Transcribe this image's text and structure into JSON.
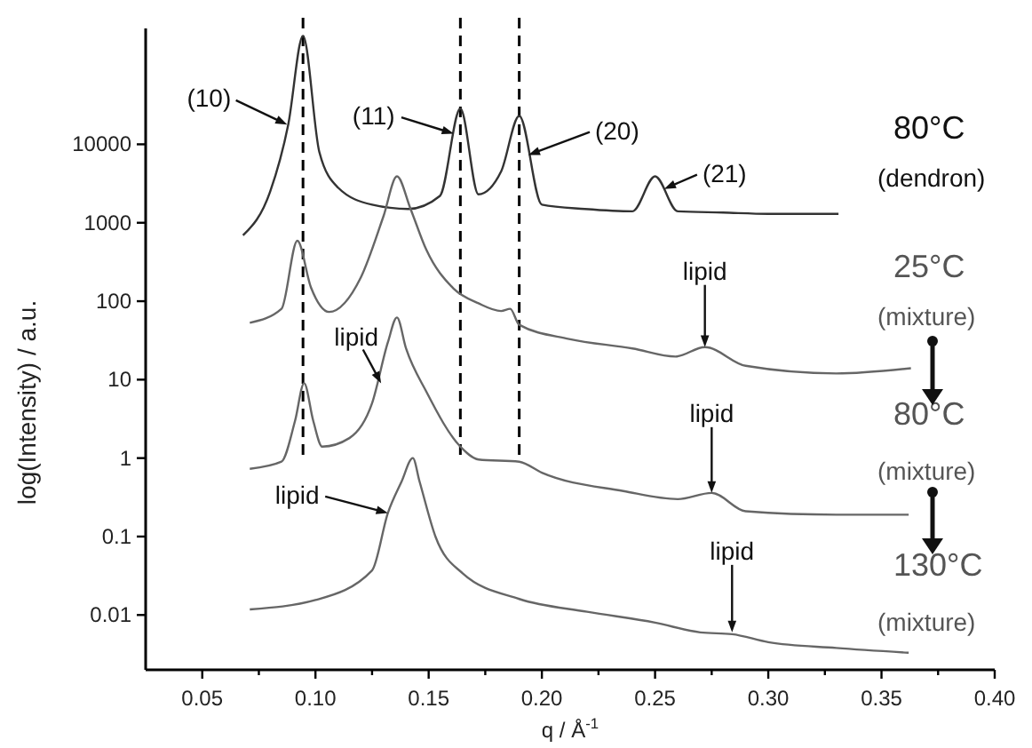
{
  "chart_data": {
    "type": "line",
    "xlabel": "q / Å$^{-1}$",
    "ylabel": "log(Intensity) / a.u.",
    "log": "y",
    "grid": false,
    "marker": "none",
    "line_style": "solid",
    "xlim": [
      0.025,
      0.4
    ],
    "ylim": [
      0.002,
      300000
    ],
    "xticks": [
      0.05,
      {
        "value": 0.075,
        "label": null
      },
      "0.10",
      {
        "value": 0.125,
        "label": null
      },
      "0.15",
      {
        "value": 0.175,
        "label": null
      },
      "0.20",
      {
        "value": 0.225,
        "label": null
      },
      0.25,
      {
        "value": 0.275,
        "label": null
      },
      "0.30",
      {
        "value": 0.325,
        "label": null
      },
      0.35,
      {
        "value": 0.375,
        "label": null
      },
      "0.40"
    ],
    "yticks": [
      0.01,
      0.1,
      1,
      10,
      100,
      1000,
      10000
    ],
    "series": [
      {
        "name": "80°C (dendron)",
        "color": "#333333",
        "x": [
          0.068,
          0.08,
          0.088,
          0.0945,
          0.1017,
          0.11,
          0.125,
          0.141,
          0.155,
          0.164,
          0.172,
          0.182,
          0.19,
          0.2,
          0.219,
          0.24,
          0.25,
          0.26,
          0.28,
          0.3,
          0.331
        ],
        "values": [
          690,
          2500,
          18000,
          240000,
          8000,
          2800,
          1700,
          1500,
          2200,
          28500,
          2300,
          4500,
          23000,
          1700,
          1500,
          1400,
          3900,
          1400,
          1350,
          1300,
          1300
        ]
      },
      {
        "name": "25°C (mixture)",
        "color": "#666666",
        "x": [
          0.071,
          0.085,
          0.092,
          0.098,
          0.106,
          0.12,
          0.13,
          0.136,
          0.142,
          0.149,
          0.161,
          0.172,
          0.182,
          0.186,
          0.19,
          0.212,
          0.24,
          0.259,
          0.272,
          0.29,
          0.33,
          0.363
        ],
        "values": [
          53,
          80,
          590,
          150,
          73,
          200,
          1200,
          3900,
          1500,
          450,
          145,
          94,
          75,
          80,
          50,
          33,
          25,
          19.7,
          26,
          15,
          12,
          14
        ]
      },
      {
        "name": "80°C (mixture)",
        "color": "#666666",
        "x": [
          0.071,
          0.085,
          0.091,
          0.095,
          0.099,
          0.103,
          0.115,
          0.125,
          0.132,
          0.136,
          0.14,
          0.149,
          0.164,
          0.172,
          0.19,
          0.2,
          0.236,
          0.26,
          0.275,
          0.29,
          0.33,
          0.362
        ],
        "values": [
          0.73,
          0.9,
          3,
          9,
          3,
          1.4,
          1.8,
          5,
          30,
          62,
          25,
          7,
          1.4,
          0.96,
          0.9,
          0.65,
          0.38,
          0.3,
          0.36,
          0.21,
          0.19,
          0.19
        ]
      },
      {
        "name": "130°C (mixture)",
        "color": "#666666",
        "x": [
          0.071,
          0.1,
          0.125,
          0.132,
          0.138,
          0.143,
          0.146,
          0.153,
          0.165,
          0.19,
          0.22,
          0.25,
          0.27,
          0.284,
          0.3,
          0.33,
          0.362
        ],
        "values": [
          0.0118,
          0.0155,
          0.037,
          0.2,
          0.5,
          1.0,
          0.5,
          0.1,
          0.034,
          0.016,
          0.011,
          0.008,
          0.006,
          0.0057,
          0.0045,
          0.0038,
          0.0033
        ]
      }
    ],
    "ref_lines": [
      {
        "axis": "x",
        "value": 0.0945,
        "line_style": "dashed",
        "color": "#000000"
      },
      {
        "axis": "x",
        "value": 0.164,
        "line_style": "dashed",
        "color": "#000000"
      },
      {
        "axis": "x",
        "value": 0.19,
        "line_style": "dashed",
        "color": "#000000"
      }
    ],
    "annotations": [
      {
        "text": "(10)",
        "x": 0.0875,
        "y": 17800
      },
      {
        "text": "(11)",
        "x": 0.161,
        "y": 13700
      },
      {
        "text": "(20)",
        "x": 0.194,
        "y": 7300
      },
      {
        "text": "(21)",
        "x": 0.254,
        "y": 2700
      },
      {
        "text": "lipid",
        "x": 0.272,
        "y": 26
      },
      {
        "text": "lipid",
        "x": 0.129,
        "y": 9
      },
      {
        "text": "lipid",
        "x": 0.275,
        "y": 0.36
      },
      {
        "text": "lipid",
        "x": 0.132,
        "y": 0.2
      },
      {
        "text": "lipid",
        "x": 0.284,
        "y": 0.006
      }
    ]
  }
}
